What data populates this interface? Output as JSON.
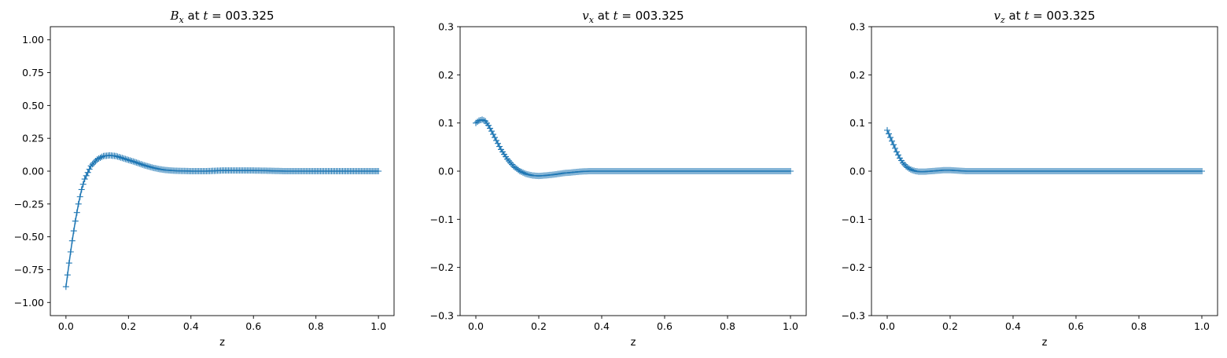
{
  "chart_data": [
    {
      "type": "line",
      "title_symbol": "B",
      "title_subscript": "x",
      "title_rest": " at ",
      "title_t": "t",
      "title_value": " = 003.325",
      "xlabel": "z",
      "ylabel": "",
      "xlim": [
        -0.05,
        1.05
      ],
      "ylim": [
        -1.1,
        1.1
      ],
      "xticks": [
        0.0,
        0.2,
        0.4,
        0.6,
        0.8,
        1.0
      ],
      "xtick_labels": [
        "0.0",
        "0.2",
        "0.4",
        "0.6",
        "0.8",
        "1.0"
      ],
      "yticks": [
        -1.0,
        -0.75,
        -0.5,
        -0.25,
        0.0,
        0.25,
        0.5,
        0.75,
        1.0
      ],
      "ytick_labels": [
        "−1.00",
        "−0.75",
        "−0.50",
        "−0.25",
        "0.00",
        "0.25",
        "0.50",
        "0.75",
        "1.00"
      ],
      "marker": "+",
      "color": "#1f77b4",
      "x": [
        0.0,
        0.01,
        0.02,
        0.03,
        0.04,
        0.05,
        0.06,
        0.08,
        0.1,
        0.12,
        0.14,
        0.16,
        0.18,
        0.2,
        0.22,
        0.25,
        0.28,
        0.3,
        0.32,
        0.35,
        0.4,
        0.45,
        0.5,
        0.55,
        0.6,
        0.65,
        0.7,
        0.75,
        0.8,
        0.85,
        0.9,
        0.95,
        1.0
      ],
      "y": [
        -0.88,
        -0.7,
        -0.53,
        -0.38,
        -0.25,
        -0.14,
        -0.06,
        0.04,
        0.09,
        0.115,
        0.12,
        0.115,
        0.1,
        0.085,
        0.07,
        0.045,
        0.025,
        0.015,
        0.008,
        0.003,
        0.0,
        0.0,
        0.005,
        0.005,
        0.005,
        0.003,
        0.0,
        0.0,
        0.0,
        0.0,
        0.0,
        0.0,
        0.0
      ]
    },
    {
      "type": "line",
      "title_symbol": "v",
      "title_subscript": "x",
      "title_rest": " at ",
      "title_t": "t",
      "title_value": " = 003.325",
      "xlabel": "z",
      "ylabel": "",
      "xlim": [
        -0.05,
        1.05
      ],
      "ylim": [
        -0.3,
        0.3
      ],
      "xticks": [
        0.0,
        0.2,
        0.4,
        0.6,
        0.8,
        1.0
      ],
      "xtick_labels": [
        "0.0",
        "0.2",
        "0.4",
        "0.6",
        "0.8",
        "1.0"
      ],
      "yticks": [
        -0.3,
        -0.2,
        -0.1,
        0.0,
        0.1,
        0.2,
        0.3
      ],
      "ytick_labels": [
        "−0.3",
        "−0.2",
        "−0.1",
        "0.0",
        "0.1",
        "0.2",
        "0.3"
      ],
      "marker": "+",
      "color": "#1f77b4",
      "x": [
        0.0,
        0.01,
        0.02,
        0.03,
        0.04,
        0.05,
        0.06,
        0.08,
        0.1,
        0.12,
        0.14,
        0.16,
        0.18,
        0.2,
        0.22,
        0.25,
        0.28,
        0.3,
        0.33,
        0.36,
        0.4,
        0.45,
        0.5,
        0.55,
        0.6,
        0.65,
        0.7,
        0.75,
        0.8,
        0.85,
        0.9,
        0.95,
        1.0
      ],
      "y": [
        0.1,
        0.105,
        0.107,
        0.104,
        0.095,
        0.083,
        0.07,
        0.045,
        0.025,
        0.01,
        0.0,
        -0.006,
        -0.009,
        -0.01,
        -0.009,
        -0.007,
        -0.004,
        -0.003,
        -0.001,
        0.0,
        0.0,
        0.0,
        0.0,
        0.0,
        0.0,
        0.0,
        0.0,
        0.0,
        0.0,
        0.0,
        0.0,
        0.0,
        0.0
      ]
    },
    {
      "type": "line",
      "title_symbol": "v",
      "title_subscript": "z",
      "title_rest": " at ",
      "title_t": "t",
      "title_value": " = 003.325",
      "xlabel": "z",
      "ylabel": "",
      "xlim": [
        -0.05,
        1.05
      ],
      "ylim": [
        -0.3,
        0.3
      ],
      "xticks": [
        0.0,
        0.2,
        0.4,
        0.6,
        0.8,
        1.0
      ],
      "xtick_labels": [
        "0.0",
        "0.2",
        "0.4",
        "0.6",
        "0.8",
        "1.0"
      ],
      "yticks": [
        -0.3,
        -0.2,
        -0.1,
        0.0,
        0.1,
        0.2,
        0.3
      ],
      "ytick_labels": [
        "−0.3",
        "−0.2",
        "−0.1",
        "0.0",
        "0.1",
        "0.2",
        "0.3"
      ],
      "marker": "+",
      "color": "#1f77b4",
      "x": [
        0.0,
        0.01,
        0.02,
        0.03,
        0.04,
        0.05,
        0.06,
        0.07,
        0.08,
        0.09,
        0.1,
        0.12,
        0.14,
        0.16,
        0.18,
        0.2,
        0.25,
        0.3,
        0.4,
        0.5,
        0.6,
        0.7,
        0.8,
        0.9,
        1.0
      ],
      "y": [
        0.085,
        0.07,
        0.055,
        0.04,
        0.027,
        0.017,
        0.01,
        0.005,
        0.002,
        0.0,
        -0.001,
        -0.001,
        0.0,
        0.001,
        0.002,
        0.002,
        0.0,
        0.0,
        0.0,
        0.0,
        0.0,
        0.0,
        0.0,
        0.0,
        0.0
      ]
    }
  ]
}
